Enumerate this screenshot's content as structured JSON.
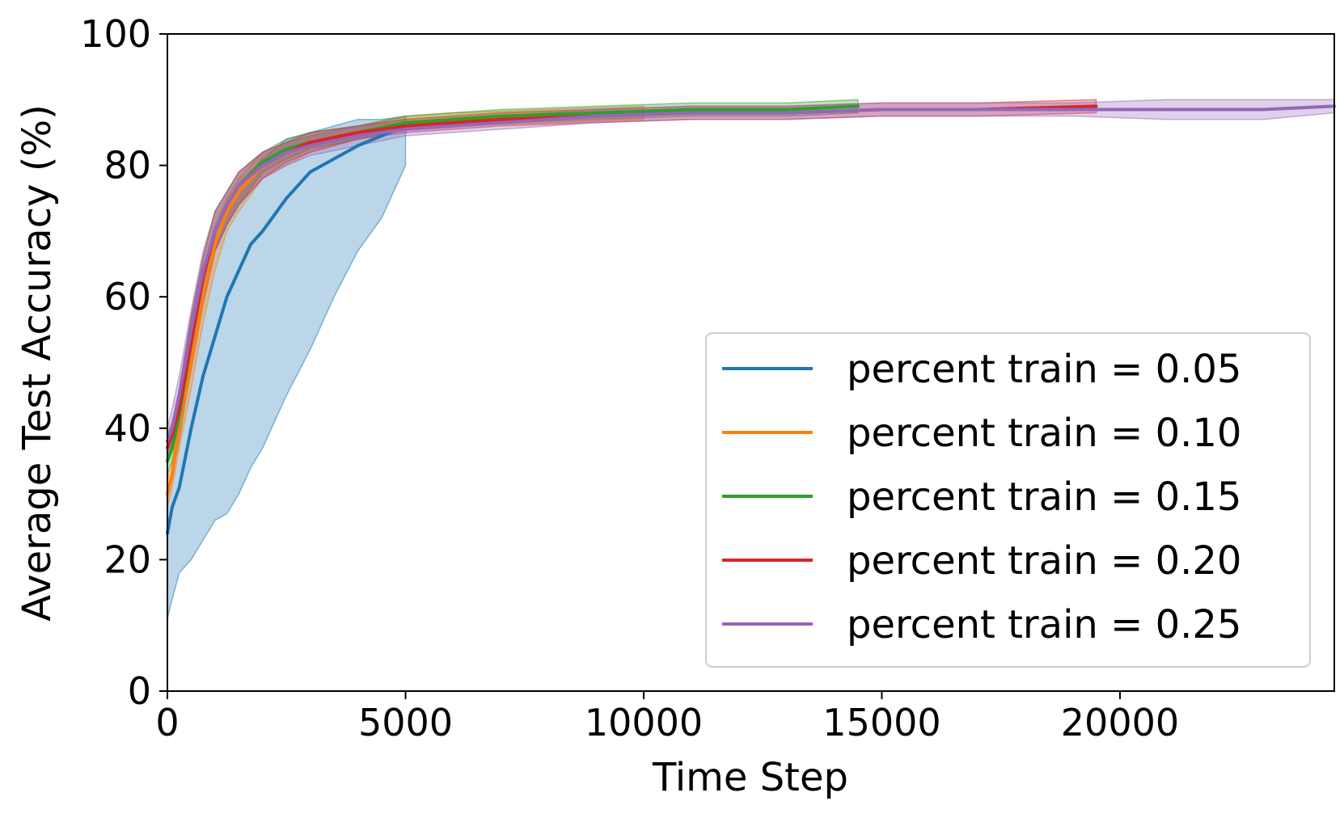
{
  "chart_data": {
    "type": "line",
    "title": "",
    "xlabel": "Time Step",
    "ylabel": "Average Test Accuracy (%)",
    "xlim": [
      0,
      24500
    ],
    "ylim": [
      0,
      100
    ],
    "xticks": [
      0,
      5000,
      10000,
      15000,
      20000
    ],
    "yticks": [
      0,
      20,
      40,
      60,
      80,
      100
    ],
    "grid": false,
    "legend_position": "lower-right",
    "shaded_band": "variability band around each mean line",
    "series": [
      {
        "name": "percent train = 0.05",
        "color": "#1f77b4",
        "x": [
          0,
          100,
          250,
          500,
          750,
          1000,
          1250,
          1500,
          1750,
          2000,
          2500,
          3000,
          3500,
          4000,
          4500,
          5000
        ],
        "y": [
          24,
          28,
          31,
          40,
          48,
          54,
          60,
          64,
          68,
          70,
          75,
          79,
          81,
          83,
          84.5,
          86
        ],
        "lower": [
          11,
          14,
          18,
          20,
          23,
          26,
          27,
          30,
          34,
          37,
          45,
          52,
          60,
          67,
          72,
          80
        ],
        "upper": [
          30,
          33,
          38,
          50,
          60,
          68,
          73,
          76,
          79,
          81,
          84,
          85,
          86,
          87,
          87,
          87.5
        ]
      },
      {
        "name": "percent train = 0.10",
        "color": "#ff7f0e",
        "x": [
          0,
          100,
          250,
          500,
          750,
          1000,
          1250,
          1500,
          2000,
          2500,
          3000,
          4000,
          5000,
          6000,
          8000,
          10000
        ],
        "y": [
          30,
          33,
          40,
          50,
          60,
          68,
          73,
          76,
          80,
          82,
          83,
          85,
          86.5,
          87,
          87.5,
          88
        ],
        "lower": [
          28,
          31,
          37,
          46,
          56,
          64,
          70,
          73,
          78,
          80,
          82,
          84,
          85.5,
          86,
          86.5,
          87
        ],
        "upper": [
          32,
          35,
          43,
          54,
          64,
          71,
          75,
          78,
          82,
          83.5,
          84.5,
          86,
          87.5,
          88,
          88.5,
          89
        ]
      },
      {
        "name": "percent train = 0.15",
        "color": "#2ca02c",
        "x": [
          0,
          100,
          250,
          500,
          750,
          1000,
          1250,
          1500,
          2000,
          2500,
          3000,
          4000,
          5000,
          7000,
          9000,
          11000,
          13000,
          14500
        ],
        "y": [
          35,
          37,
          42,
          53,
          63,
          70,
          74,
          77,
          80.5,
          82.5,
          83.5,
          85,
          86.5,
          87.5,
          88,
          88.5,
          88.5,
          89
        ],
        "lower": [
          33,
          35,
          39,
          49,
          59,
          67,
          71,
          74,
          79,
          81,
          82.5,
          84,
          85.5,
          86.5,
          87,
          87.5,
          87.5,
          88
        ],
        "upper": [
          37,
          40,
          46,
          57,
          66,
          73,
          76,
          79,
          82,
          84,
          85,
          86,
          87.5,
          88.5,
          89,
          89.5,
          89.5,
          90
        ]
      },
      {
        "name": "percent train = 0.20",
        "color": "#d62728",
        "x": [
          0,
          100,
          250,
          500,
          750,
          1000,
          1250,
          1500,
          2000,
          2500,
          3000,
          4000,
          5000,
          7000,
          9000,
          11000,
          13000,
          15000,
          17000,
          19500
        ],
        "y": [
          37,
          39,
          43,
          53,
          63,
          70,
          74,
          77,
          80,
          82,
          83.5,
          85,
          86,
          87,
          87.5,
          88,
          88,
          88.5,
          88.5,
          89
        ],
        "lower": [
          35,
          37,
          40,
          49,
          59,
          67,
          71,
          74,
          78,
          80.5,
          82,
          84,
          85,
          86,
          86.5,
          87,
          87,
          87.5,
          87.5,
          88
        ],
        "upper": [
          39,
          41,
          46,
          57,
          66,
          73,
          76,
          79,
          82,
          83.5,
          85,
          86,
          87,
          88,
          88.5,
          89,
          89,
          89.5,
          89.5,
          90
        ]
      },
      {
        "name": "percent train = 0.25",
        "color": "#9467bd",
        "x": [
          0,
          100,
          250,
          500,
          750,
          1000,
          1250,
          1500,
          2000,
          2500,
          3000,
          4000,
          5000,
          7000,
          9000,
          11000,
          13000,
          15000,
          17000,
          19000,
          21000,
          23000,
          24500
        ],
        "y": [
          38,
          40,
          45,
          55,
          64,
          70,
          74,
          77,
          80,
          82,
          83,
          84.5,
          85.5,
          86.5,
          87.5,
          88,
          88,
          88.5,
          88.5,
          88.5,
          88.5,
          88.5,
          89
        ],
        "lower": [
          36,
          38,
          42,
          51,
          60,
          67,
          71,
          74,
          78,
          80,
          81.5,
          83,
          84.5,
          85.5,
          86.5,
          87,
          87,
          87.5,
          87.5,
          87.5,
          87,
          87,
          88
        ],
        "upper": [
          40,
          43,
          48,
          58,
          67,
          73,
          76,
          79,
          82,
          83.5,
          84.5,
          86,
          86.5,
          87.5,
          88.5,
          89,
          89,
          89.5,
          89.5,
          89.5,
          90,
          90,
          90
        ]
      }
    ]
  }
}
